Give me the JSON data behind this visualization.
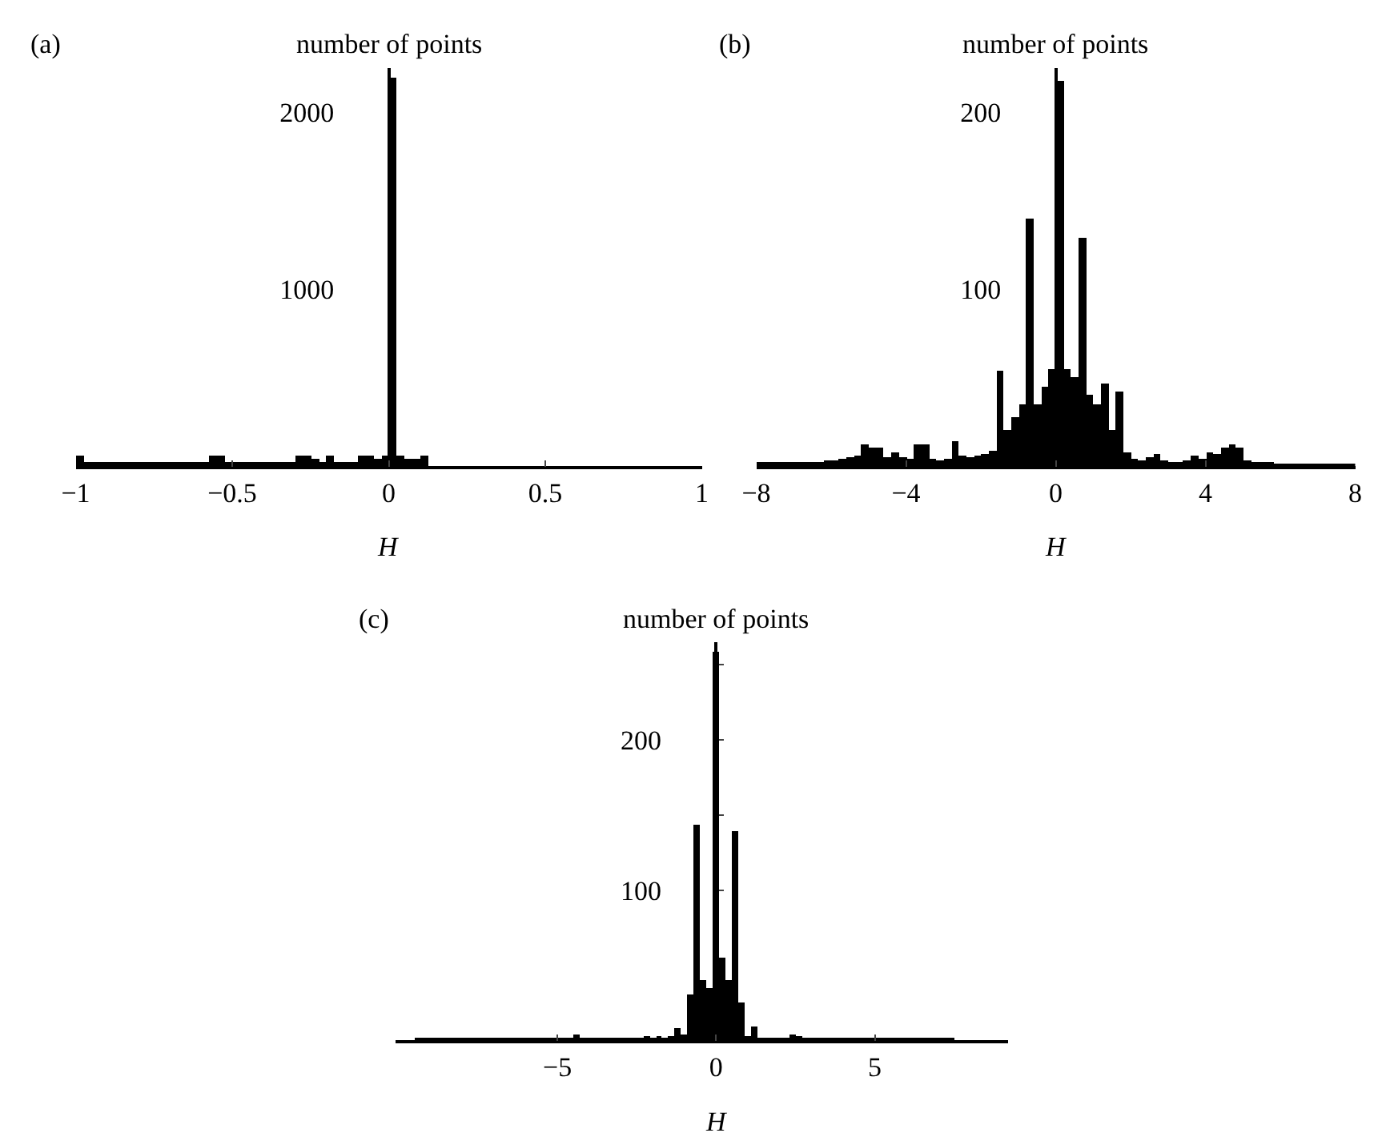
{
  "chart_data": [
    {
      "type": "histogram",
      "title": "(a)",
      "ylabel": "number of points",
      "xlabel": "H",
      "color": "#000000",
      "bins": [
        -1,
        -0.975,
        -0.95,
        -0.925,
        -0.9,
        -0.875,
        -0.85,
        -0.825,
        -0.8,
        -0.775,
        -0.75,
        -0.725,
        -0.7,
        -0.675,
        -0.65,
        -0.625,
        -0.6,
        -0.575,
        -0.55,
        -0.525,
        -0.5,
        -0.475,
        -0.45,
        -0.425,
        -0.4,
        -0.375,
        -0.35,
        -0.325,
        -0.3,
        -0.275,
        -0.25,
        -0.225,
        -0.2,
        -0.175,
        -0.15,
        -0.125,
        -0.1,
        -0.075,
        -0.05,
        -0.025,
        0,
        0.025,
        0.05,
        0.075,
        0.1,
        0.125,
        0.15,
        0.175,
        0.2,
        0.225,
        0.25,
        0.275,
        0.3,
        0.325,
        0.35,
        0.375,
        0.4,
        0.425,
        0.45,
        0.475,
        0.5,
        0.525,
        0.55,
        0.575,
        0.6,
        0.625,
        0.65,
        0.675,
        0.7,
        0.725,
        0.75,
        0.775,
        0.8,
        0.825,
        0.85,
        0.875,
        0.9,
        0.925,
        0.95,
        0.975,
        1
      ],
      "values": [
        60,
        20,
        20,
        20,
        20,
        20,
        20,
        20,
        20,
        20,
        20,
        20,
        20,
        20,
        20,
        20,
        20,
        60,
        60,
        20,
        20,
        20,
        20,
        20,
        20,
        20,
        20,
        20,
        60,
        60,
        40,
        20,
        60,
        20,
        20,
        20,
        60,
        60,
        40,
        60,
        2200,
        60,
        40,
        40,
        60,
        0,
        0,
        0,
        0,
        0,
        0,
        0,
        0,
        0,
        0,
        0,
        0,
        0,
        0,
        0,
        0,
        0,
        0,
        0,
        0,
        0,
        0,
        0,
        0,
        0,
        0,
        0,
        0,
        0,
        0,
        0,
        0,
        0,
        0,
        0
      ],
      "xlim": [
        -1,
        1
      ],
      "xticks": [
        -1,
        -0.5,
        0,
        0.5,
        1
      ],
      "ylim": [
        0,
        2250
      ],
      "yticks": [
        {
          "value": 500,
          "label": null
        },
        1000,
        {
          "value": 1500,
          "label": null
        },
        2000
      ]
    },
    {
      "type": "histogram",
      "title": "(b)",
      "ylabel": "number of points",
      "xlabel": "H",
      "color": "#000000",
      "bins": [
        -8,
        -7.8,
        -7.6,
        -7.4,
        -7.2,
        -7,
        -6.8,
        -6.6,
        -6.4,
        -6.2,
        -6,
        -5.8,
        -5.6,
        -5.4,
        -5.2,
        -5,
        -4.8,
        -4.6,
        -4.4,
        -4.2,
        -4,
        -3.8,
        -3.6,
        -3.4,
        -3.2,
        -3,
        -2.8,
        -2.6,
        -2.4,
        -2.2,
        -2,
        -1.8,
        -1.6,
        -1.4,
        -1.2,
        -1,
        -0.8,
        -0.6,
        -0.4,
        -0.2,
        0,
        0.2,
        0.4,
        0.6,
        0.8,
        1,
        1.2,
        1.4,
        1.6,
        1.8,
        2,
        2.2,
        2.4,
        2.6,
        2.8,
        3,
        3.2,
        3.4,
        3.6,
        3.8,
        4,
        4.2,
        4.4,
        4.6,
        4.8,
        5,
        5.2,
        5.4,
        5.6,
        5.8,
        6,
        6.2,
        6.4,
        6.6,
        6.8,
        7,
        7.2,
        7.4,
        7.6,
        7.8,
        8
      ],
      "values": [
        2,
        2,
        2,
        2,
        2,
        2,
        2,
        2,
        2,
        3,
        3,
        4,
        5,
        6,
        12,
        10,
        10,
        5,
        8,
        5,
        4,
        12,
        12,
        4,
        3,
        4,
        14,
        6,
        5,
        6,
        7,
        9,
        54,
        20,
        28,
        35,
        140,
        35,
        45,
        55,
        218,
        55,
        50,
        129,
        40,
        35,
        47,
        20,
        42,
        8,
        4,
        3,
        5,
        7,
        3,
        2,
        2,
        3,
        6,
        4,
        8,
        7,
        10,
        12,
        10,
        3,
        2,
        2,
        2,
        1,
        1,
        1,
        1,
        1,
        1,
        1,
        1,
        1,
        1,
        1
      ],
      "xlim": [
        -8,
        8
      ],
      "xticks": [
        -8,
        -4,
        0,
        4,
        8
      ],
      "ylim": [
        0,
        225
      ],
      "yticks": [
        {
          "value": 50,
          "label": null
        },
        100,
        {
          "value": 150,
          "label": null
        },
        200
      ]
    },
    {
      "type": "histogram",
      "title": "(c)",
      "ylabel": "number of points",
      "xlabel": "H",
      "color": "#000000",
      "bins": [
        -9.5,
        -9.3,
        -9.1,
        -8.9,
        -8.7,
        -8.5,
        -8.3,
        -8.1,
        -7.9,
        -7.7,
        -7.5,
        -7.3,
        -7.1,
        -6.9,
        -6.7,
        -6.5,
        -6.3,
        -6.1,
        -5.9,
        -5.7,
        -5.5,
        -5.3,
        -5.1,
        -4.9,
        -4.7,
        -4.5,
        -4.3,
        -4.1,
        -3.9,
        -3.7,
        -3.5,
        -3.3,
        -3.1,
        -2.9,
        -2.7,
        -2.5,
        -2.3,
        -2.1,
        -1.9,
        -1.7,
        -1.5,
        -1.3,
        -1.1,
        -0.9,
        -0.7,
        -0.5,
        -0.3,
        -0.1,
        0.1,
        0.3,
        0.5,
        0.7,
        0.9,
        1.1,
        1.3,
        1.5,
        1.7,
        1.9,
        2.1,
        2.3,
        2.5,
        2.7,
        2.9,
        3.1,
        3.3,
        3.5,
        3.7,
        3.9,
        4.1,
        4.3,
        4.5,
        4.7,
        4.9,
        5.1,
        5.3,
        5.5,
        5.7,
        5.9,
        6.1,
        6.3,
        6.5,
        6.7,
        6.9,
        7.1,
        7.3,
        7.5
      ],
      "values": [
        2,
        2,
        2,
        2,
        2,
        2,
        2,
        2,
        2,
        2,
        2,
        2,
        2,
        2,
        2,
        2,
        2,
        2,
        2,
        2,
        2,
        2,
        2,
        2,
        2,
        4,
        2,
        2,
        2,
        2,
        2,
        2,
        2,
        2,
        2,
        2,
        3,
        2,
        3,
        2,
        3,
        8,
        4,
        30,
        143,
        40,
        35,
        259,
        55,
        40,
        139,
        25,
        3,
        9,
        2,
        2,
        2,
        2,
        2,
        4,
        3,
        2,
        2,
        2,
        2,
        2,
        2,
        2,
        2,
        2,
        2,
        2,
        2,
        1,
        1,
        1,
        1,
        1,
        1,
        1,
        1,
        1,
        1,
        1,
        1
      ],
      "xlim": [
        -10.1,
        9.2
      ],
      "xticks": [
        -5,
        0,
        5
      ],
      "ylim": [
        0,
        265
      ],
      "yticks": [
        {
          "value": 50,
          "label": null
        },
        100,
        {
          "value": 150,
          "label": null
        },
        200,
        {
          "value": 250,
          "label": null
        }
      ]
    }
  ]
}
